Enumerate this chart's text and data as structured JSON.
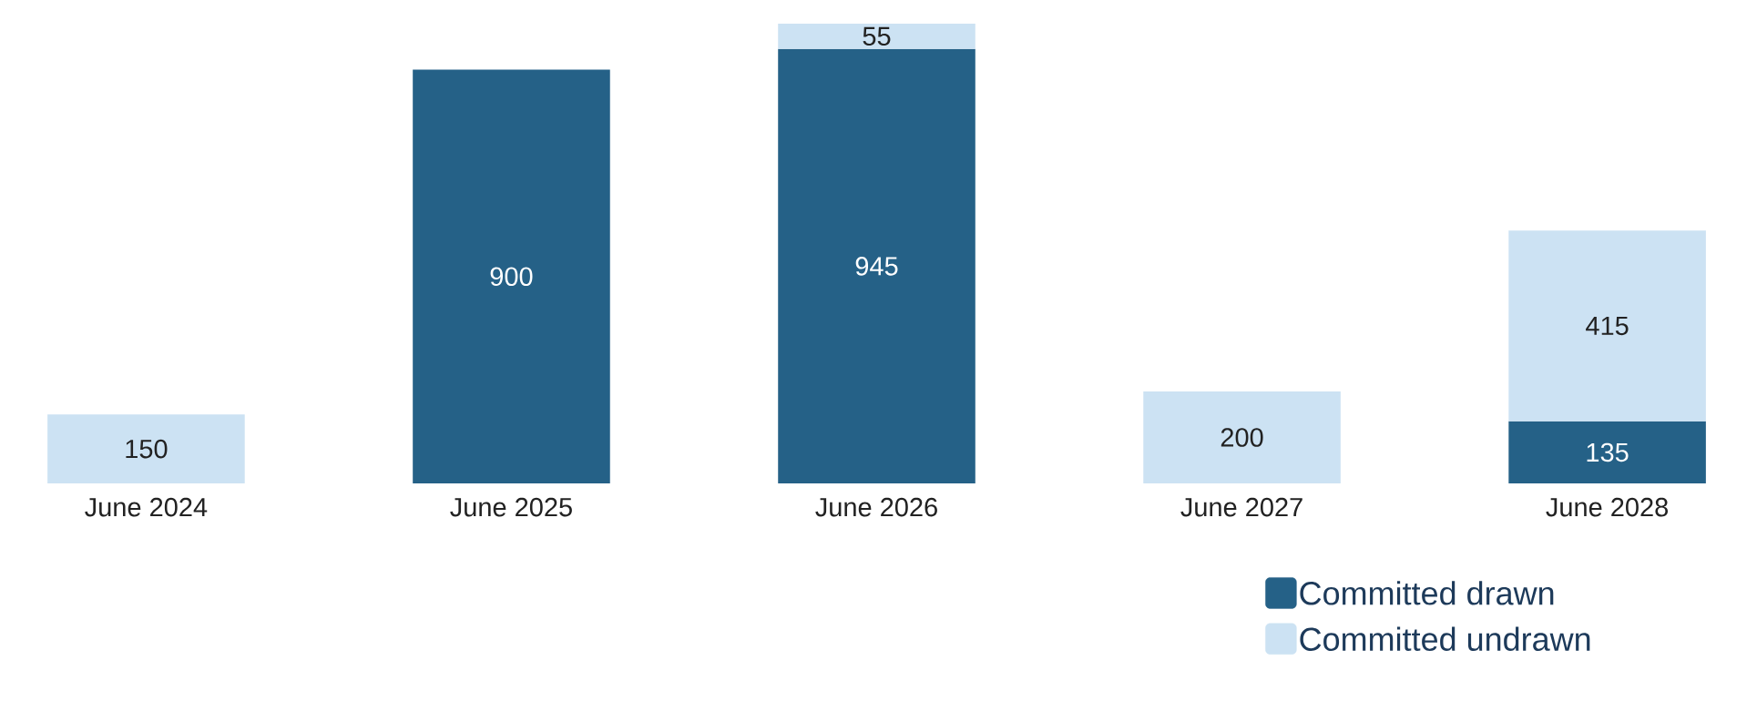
{
  "chart_data": {
    "type": "bar",
    "stacked": true,
    "data_labels": true,
    "legend": "bottom right",
    "categories": [
      "June 2024",
      "June 2025",
      "June 2026",
      "June 2027",
      "June 2028"
    ],
    "series": [
      {
        "name": "Committed drawn",
        "color": "#256187",
        "values": [
          null,
          900,
          945,
          null,
          135
        ]
      },
      {
        "name": "Committed undrawn",
        "color": "#cce2f3",
        "values": [
          150,
          null,
          55,
          200,
          415
        ]
      }
    ]
  }
}
